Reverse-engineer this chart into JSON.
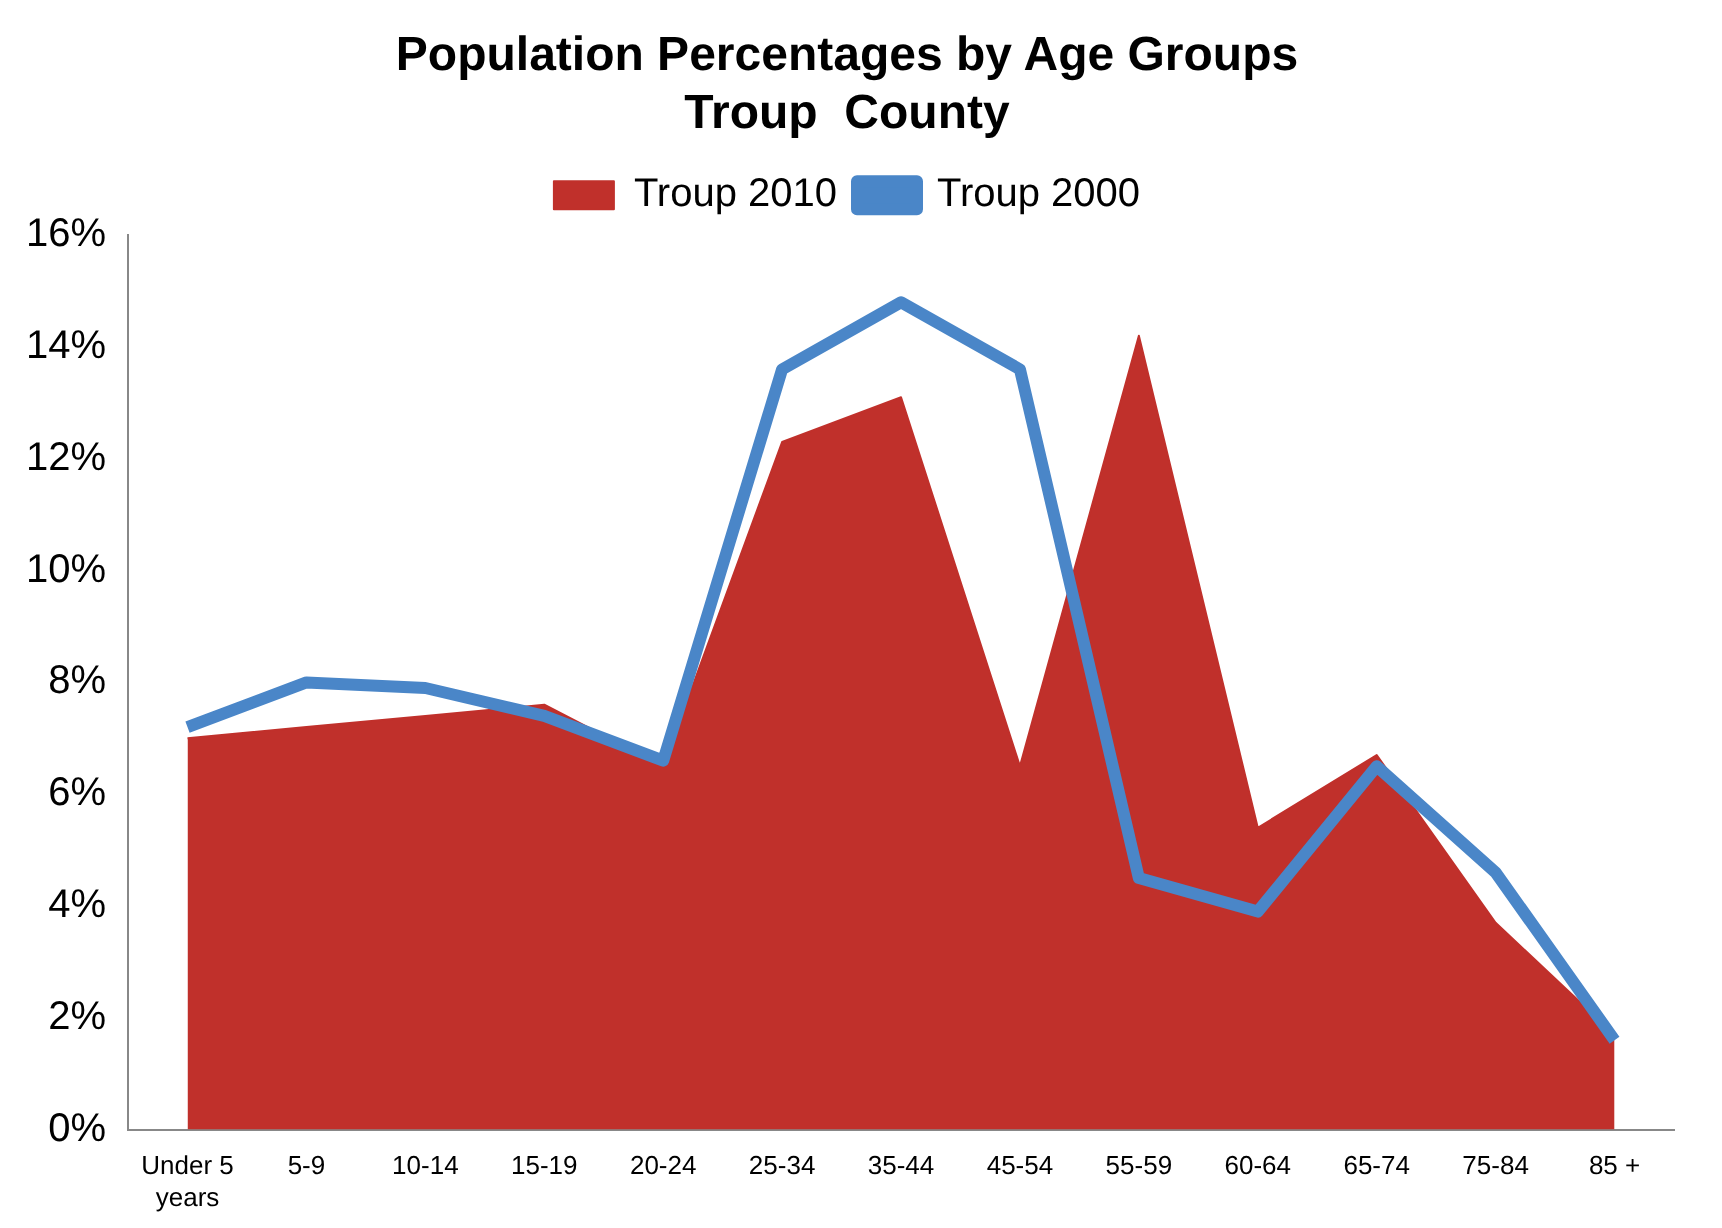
{
  "chart_data": {
    "type": "area",
    "title": "Population Percentages by Age Groups\nTroup  County",
    "categories": [
      "Under 5 years",
      "5-9",
      "10-14",
      "15-19",
      "20-24",
      "25-34",
      "35-44",
      "45-54",
      "55-59",
      "60-64",
      "65-74",
      "75-84",
      "85 +"
    ],
    "series": [
      {
        "name": "Troup 2010",
        "color": "#c0302b",
        "values": [
          7.0,
          7.2,
          7.4,
          7.6,
          6.5,
          12.3,
          13.1,
          6.5,
          14.2,
          5.4,
          6.7,
          3.7,
          1.7
        ]
      },
      {
        "name": "Troup 2000",
        "type": "line",
        "color": "#4a86c8",
        "values": [
          7.2,
          8.0,
          7.9,
          7.4,
          6.6,
          13.6,
          14.8,
          13.6,
          4.5,
          3.9,
          6.5,
          4.6,
          1.6
        ]
      }
    ],
    "ylim": [
      0,
      16
    ],
    "yticks": [
      {
        "value": 0,
        "label": "0%"
      },
      {
        "value": 2,
        "label": "2%"
      },
      {
        "value": 4,
        "label": "4%"
      },
      {
        "value": 6,
        "label": "6%"
      },
      {
        "value": 8,
        "label": "8%"
      },
      {
        "value": 10,
        "label": "10%"
      },
      {
        "value": 12,
        "label": "12%"
      },
      {
        "value": 14,
        "label": "14%"
      },
      {
        "value": 16,
        "label": "16%"
      }
    ],
    "grid": false,
    "legend": "top",
    "marker": "none"
  }
}
